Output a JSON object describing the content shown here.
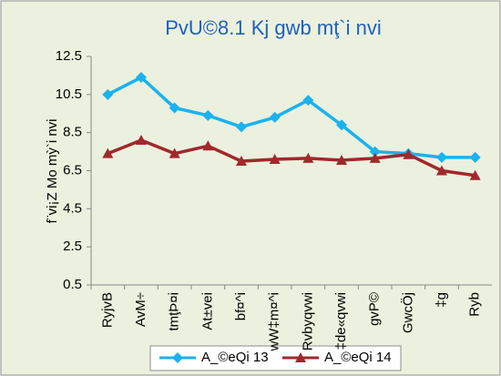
{
  "chart_data": {
    "type": "line",
    "title": "PvU©8.1  Kj gwb mţ`i nvi",
    "y_label": "f¨vi¡Z Mo mỳ`i nvi",
    "categories": [
      "RyjvB",
      "AvM÷",
      "tmţÞ¤i",
      "At±vei",
      "bf¤^i",
      "wW‡m¤^i",
      "Rvbyqvwi",
      "‡de«qvwi",
      "gvP©",
      "GwcÖj",
      "‡g",
      "Ryb"
    ],
    "series": [
      {
        "name": "A_©eQi 13",
        "color": "#1ab2ef",
        "marker": "diamond",
        "values": [
          10.5,
          11.4,
          9.8,
          9.4,
          8.8,
          9.3,
          10.2,
          8.9,
          7.5,
          7.4,
          7.2,
          7.2
        ]
      },
      {
        "name": "A_©eQi 14",
        "color": "#a0282c",
        "marker": "triangle",
        "values": [
          7.4,
          8.1,
          7.4,
          7.8,
          7.0,
          7.1,
          7.15,
          7.05,
          7.15,
          7.35,
          6.5,
          6.25
        ]
      }
    ],
    "ylim": [
      0.5,
      12.5
    ],
    "yticks": [
      0.5,
      2.5,
      4.5,
      6.5,
      8.5,
      10.5,
      12.5
    ],
    "grid": false,
    "legend": "bottom"
  }
}
